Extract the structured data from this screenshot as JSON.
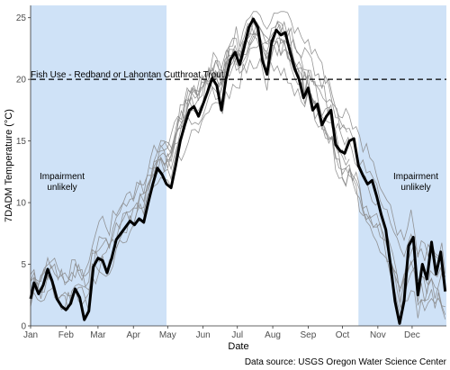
{
  "chart_data": {
    "type": "line",
    "xlabel": "Date",
    "ylabel": "7DADM Temperature (°C)",
    "months": [
      "Jan",
      "Feb",
      "Mar",
      "Apr",
      "May",
      "Jun",
      "Jul",
      "Aug",
      "Sep",
      "Oct",
      "Nov",
      "Dec"
    ],
    "ylim": [
      0,
      26
    ],
    "yticks": [
      0,
      5,
      10,
      15,
      20,
      25
    ],
    "grid": false,
    "criterion": {
      "value": 20,
      "label": "Fish Use - Redband or Lahontan Cutthroat Trout",
      "color": "#000000"
    },
    "unlikely_periods": [
      {
        "start_doy": 1,
        "end_doy": 120,
        "label_line1": "Impairment",
        "label_line2": "unlikely"
      },
      {
        "start_doy": 288,
        "end_doy": 365,
        "label_line1": "Impairment",
        "label_line2": "unlikely"
      }
    ],
    "shade_color": "#cfe2f7",
    "source_text": "Data source: USGS Oregon Water Science Center",
    "highlight_series": {
      "color": "#000000",
      "points": [
        [
          1,
          2.2
        ],
        [
          4,
          3.5
        ],
        [
          8,
          2.6
        ],
        [
          12,
          3.3
        ],
        [
          16,
          4.6
        ],
        [
          20,
          3.6
        ],
        [
          24,
          2.2
        ],
        [
          28,
          1.6
        ],
        [
          32,
          1.3
        ],
        [
          36,
          1.8
        ],
        [
          40,
          3.0
        ],
        [
          44,
          2.3
        ],
        [
          48,
          0.5
        ],
        [
          52,
          1.2
        ],
        [
          56,
          4.8
        ],
        [
          60,
          5.5
        ],
        [
          64,
          5.3
        ],
        [
          68,
          4.3
        ],
        [
          72,
          5.5
        ],
        [
          76,
          7.0
        ],
        [
          80,
          7.5
        ],
        [
          84,
          8.0
        ],
        [
          88,
          8.5
        ],
        [
          92,
          8.2
        ],
        [
          96,
          8.7
        ],
        [
          100,
          8.4
        ],
        [
          104,
          10.0
        ],
        [
          108,
          11.5
        ],
        [
          112,
          12.8
        ],
        [
          116,
          12.3
        ],
        [
          120,
          11.5
        ],
        [
          124,
          11.2
        ],
        [
          128,
          13.0
        ],
        [
          132,
          15.0
        ],
        [
          136,
          16.3
        ],
        [
          140,
          17.5
        ],
        [
          144,
          17.8
        ],
        [
          148,
          17.0
        ],
        [
          152,
          18.0
        ],
        [
          156,
          19.0
        ],
        [
          160,
          20.1
        ],
        [
          164,
          19.5
        ],
        [
          168,
          17.5
        ],
        [
          172,
          20.0
        ],
        [
          176,
          21.6
        ],
        [
          180,
          22.2
        ],
        [
          184,
          21.2
        ],
        [
          188,
          22.6
        ],
        [
          192,
          24.2
        ],
        [
          196,
          24.9
        ],
        [
          200,
          24.2
        ],
        [
          204,
          21.5
        ],
        [
          208,
          20.4
        ],
        [
          212,
          23.0
        ],
        [
          216,
          24.0
        ],
        [
          220,
          23.6
        ],
        [
          224,
          23.8
        ],
        [
          228,
          22.3
        ],
        [
          232,
          20.9
        ],
        [
          236,
          20.0
        ],
        [
          240,
          18.5
        ],
        [
          244,
          19.3
        ],
        [
          248,
          17.5
        ],
        [
          252,
          18.0
        ],
        [
          256,
          16.3
        ],
        [
          260,
          17.0
        ],
        [
          264,
          17.5
        ],
        [
          268,
          14.7
        ],
        [
          272,
          14.2
        ],
        [
          276,
          14.0
        ],
        [
          280,
          15.0
        ],
        [
          284,
          15.2
        ],
        [
          288,
          13.0
        ],
        [
          292,
          12.2
        ],
        [
          296,
          11.5
        ],
        [
          300,
          11.8
        ],
        [
          304,
          10.5
        ],
        [
          308,
          9.0
        ],
        [
          312,
          7.8
        ],
        [
          316,
          5.0
        ],
        [
          320,
          2.0
        ],
        [
          324,
          0.2
        ],
        [
          328,
          2.0
        ],
        [
          332,
          6.5
        ],
        [
          336,
          7.2
        ],
        [
          340,
          2.5
        ],
        [
          344,
          5.0
        ],
        [
          348,
          3.8
        ],
        [
          352,
          6.8
        ],
        [
          356,
          4.2
        ],
        [
          360,
          6.0
        ],
        [
          364,
          2.8
        ]
      ]
    },
    "background_series_color": "#8a8a8a"
  }
}
